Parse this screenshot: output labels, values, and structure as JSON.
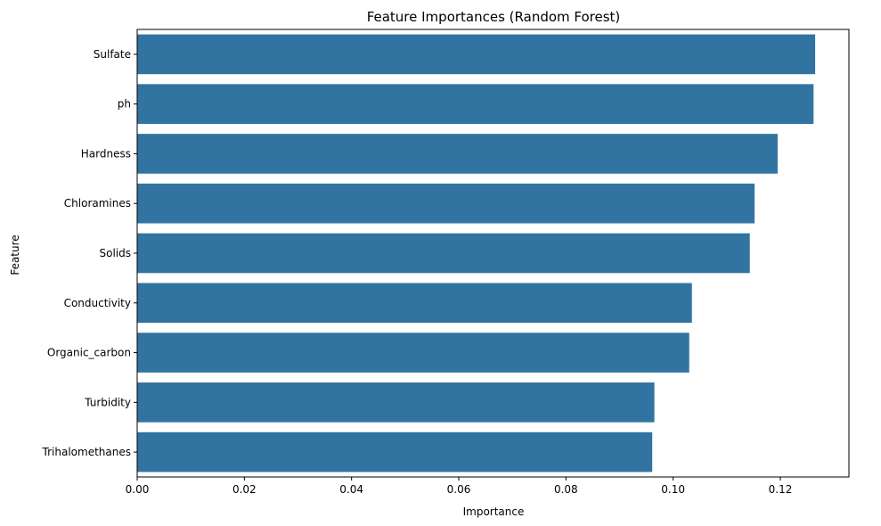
{
  "chart_data": {
    "type": "bar",
    "orientation": "horizontal",
    "title": "Feature Importances (Random Forest)",
    "xlabel": "Importance",
    "ylabel": "Feature",
    "categories": [
      "Sulfate",
      "ph",
      "Hardness",
      "Chloramines",
      "Solids",
      "Conductivity",
      "Organic_carbon",
      "Turbidity",
      "Trihalomethanes"
    ],
    "values": [
      0.1265,
      0.1262,
      0.1195,
      0.1152,
      0.1143,
      0.1035,
      0.103,
      0.0965,
      0.0961
    ],
    "xlim": [
      0,
      0.1328
    ],
    "xticks": [
      0.0,
      0.02,
      0.04,
      0.06,
      0.08,
      0.1,
      0.12
    ],
    "xtick_labels": [
      "0.00",
      "0.02",
      "0.04",
      "0.06",
      "0.08",
      "0.10",
      "0.12"
    ],
    "bar_color": "#3274a1",
    "grid": false
  }
}
